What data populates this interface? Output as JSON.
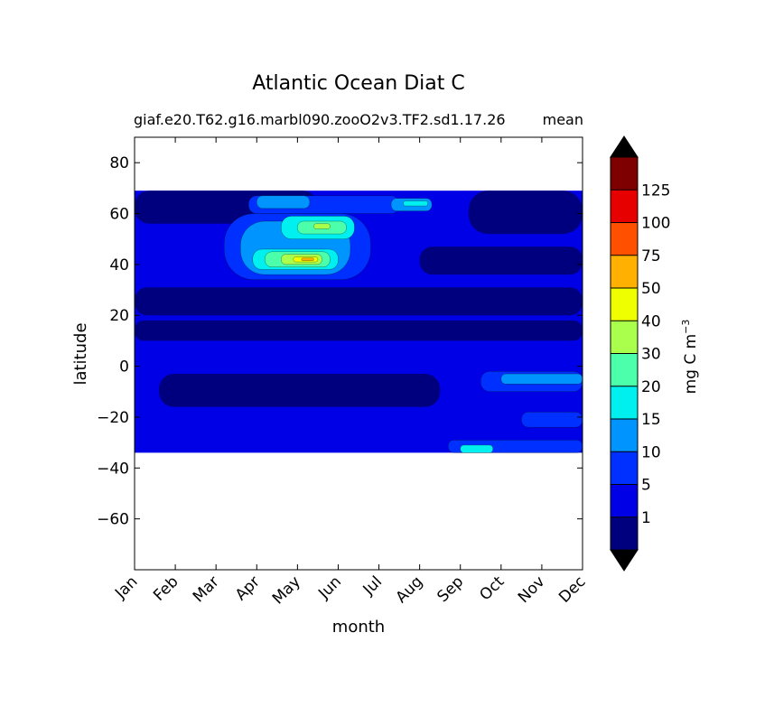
{
  "chart_data": {
    "type": "heatmap",
    "title": "Atlantic Ocean Diat C",
    "subtitle_left": "giaf.e20.T62.g16.marbl090.zooO2v3.TF2.sd1.17.26",
    "subtitle_right": "mean",
    "xlabel": "month",
    "ylabel": "latitude",
    "x_tick_labels": [
      "Jan",
      "Feb",
      "Mar",
      "Apr",
      "May",
      "Jun",
      "Jul",
      "Aug",
      "Sep",
      "Oct",
      "Nov",
      "Dec"
    ],
    "x": [
      1,
      2,
      3,
      4,
      5,
      6,
      7,
      8,
      9,
      10,
      11,
      12
    ],
    "xlim": [
      1,
      12
    ],
    "ylim": [
      -80,
      90
    ],
    "y_ticks": [
      80,
      60,
      40,
      20,
      0,
      -20,
      -40,
      -60
    ],
    "y_tick_labels": [
      "80",
      "60",
      "40",
      "20",
      "0",
      "−20",
      "−40",
      "−60"
    ],
    "data_lat_range": [
      -34,
      69
    ],
    "colorbar": {
      "label": "mg C m",
      "label_superscript": "−3",
      "levels": [
        0,
        1,
        5,
        10,
        15,
        20,
        30,
        40,
        50,
        75,
        100,
        125,
        150
      ],
      "tick_labels": [
        "1",
        "5",
        "10",
        "15",
        "20",
        "30",
        "40",
        "50",
        "75",
        "100",
        "125"
      ],
      "colors": [
        "#00007f",
        "#0000e6",
        "#0030ff",
        "#0094ff",
        "#00f0f0",
        "#4cffaa",
        "#aaff4c",
        "#f0ff00",
        "#ffb000",
        "#ff5000",
        "#e60000",
        "#7f0000"
      ],
      "extend": "both",
      "under_color": "#000000",
      "over_color": "#000000"
    },
    "regions": [
      {
        "level": 1,
        "lat": [
          -34,
          69
        ],
        "month": [
          1,
          12
        ]
      },
      {
        "level": 0,
        "lat": [
          56,
          69
        ],
        "month": [
          1,
          5.5
        ]
      },
      {
        "level": 0,
        "lat": [
          52,
          69
        ],
        "month": [
          9.2,
          12
        ]
      },
      {
        "level": 0,
        "lat": [
          20,
          31
        ],
        "month": [
          1,
          12
        ]
      },
      {
        "level": 0,
        "lat": [
          10,
          18
        ],
        "month": [
          1,
          12
        ]
      },
      {
        "level": 0,
        "lat": [
          -16,
          -3
        ],
        "month": [
          1.6,
          8.5
        ]
      },
      {
        "level": 0,
        "lat": [
          36,
          47
        ],
        "month": [
          8.0,
          12
        ]
      },
      {
        "level": 2,
        "lat": [
          34,
          60
        ],
        "month": [
          3.2,
          6.8
        ]
      },
      {
        "level": 2,
        "lat": [
          60,
          67
        ],
        "month": [
          3.8,
          7.5
        ]
      },
      {
        "level": 2,
        "lat": [
          -34,
          -29
        ],
        "month": [
          8.7,
          12
        ]
      },
      {
        "level": 2,
        "lat": [
          -10,
          -2
        ],
        "month": [
          9.5,
          12
        ]
      },
      {
        "level": 2,
        "lat": [
          -24,
          -18
        ],
        "month": [
          10.5,
          12
        ]
      },
      {
        "level": 3,
        "lat": [
          36,
          57
        ],
        "month": [
          3.6,
          6.3
        ]
      },
      {
        "level": 3,
        "lat": [
          62,
          67
        ],
        "month": [
          4.0,
          5.3
        ]
      },
      {
        "level": 3,
        "lat": [
          61,
          66
        ],
        "month": [
          7.3,
          8.3
        ]
      },
      {
        "level": 3,
        "lat": [
          -7,
          -3
        ],
        "month": [
          10.0,
          12
        ]
      },
      {
        "level": 4,
        "lat": [
          38,
          46
        ],
        "month": [
          3.9,
          6.0
        ]
      },
      {
        "level": 4,
        "lat": [
          50,
          59
        ],
        "month": [
          4.6,
          6.4
        ]
      },
      {
        "level": 4,
        "lat": [
          63,
          65
        ],
        "month": [
          7.6,
          8.2
        ]
      },
      {
        "level": 4,
        "lat": [
          -34,
          -31
        ],
        "month": [
          9.0,
          9.8
        ]
      },
      {
        "level": 5,
        "lat": [
          39,
          45
        ],
        "month": [
          4.2,
          5.8
        ]
      },
      {
        "level": 5,
        "lat": [
          52,
          57
        ],
        "month": [
          5.0,
          6.2
        ]
      },
      {
        "level": 6,
        "lat": [
          40,
          44
        ],
        "month": [
          4.6,
          5.6
        ]
      },
      {
        "level": 6,
        "lat": [
          54,
          56
        ],
        "month": [
          5.4,
          5.8
        ]
      },
      {
        "level": 7,
        "lat": [
          41,
          43
        ],
        "month": [
          4.9,
          5.5
        ]
      },
      {
        "level": 8,
        "lat": [
          41.5,
          42.5
        ],
        "month": [
          5.1,
          5.4
        ]
      }
    ]
  }
}
